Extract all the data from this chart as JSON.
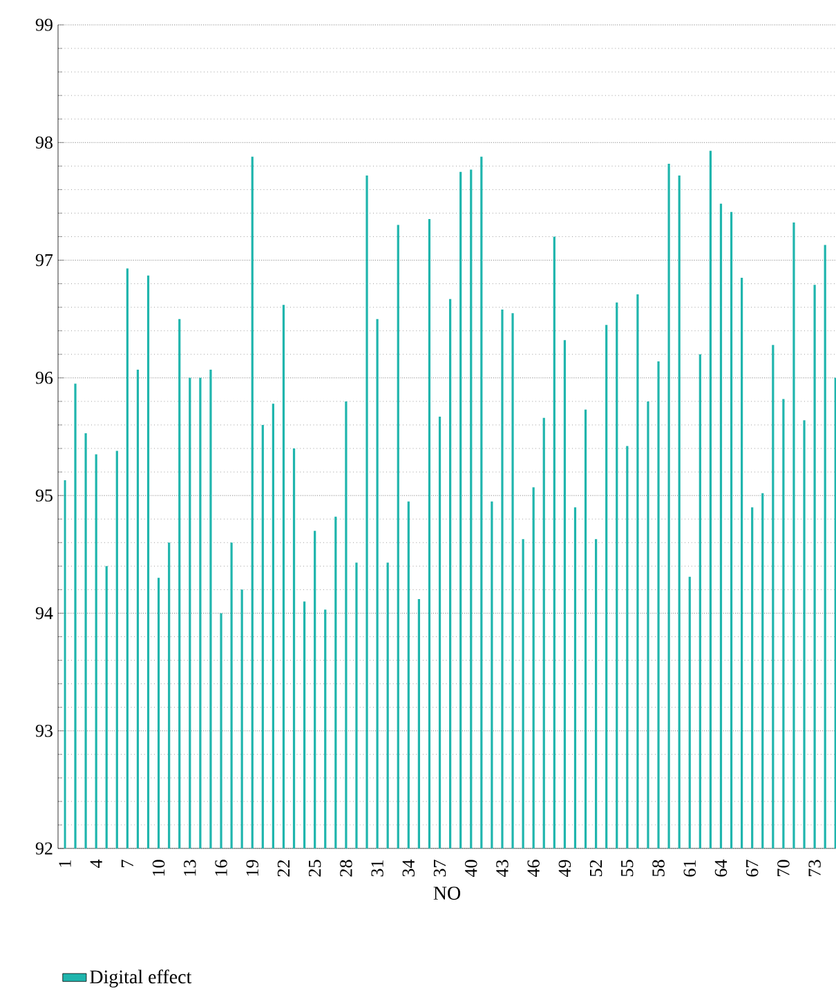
{
  "chart_data": {
    "type": "bar",
    "xlabel": "NO",
    "categories": [
      "1",
      null,
      null,
      "4",
      null,
      null,
      "7",
      null,
      null,
      "10",
      null,
      null,
      "13",
      null,
      null,
      "16",
      null,
      null,
      "19",
      null,
      null,
      "22",
      null,
      null,
      "25",
      null,
      null,
      "28",
      null,
      null,
      "31",
      null,
      null,
      "34",
      null,
      null,
      "37",
      null,
      null,
      "40",
      null,
      null,
      "43",
      null,
      null,
      "46",
      null,
      null,
      "49",
      null,
      null,
      "52",
      null,
      null,
      "55",
      null,
      null,
      "58",
      null,
      null,
      "61",
      null,
      null,
      "64",
      null,
      null,
      "67",
      null,
      null,
      "70",
      null,
      null,
      "73",
      null,
      null
    ],
    "series": [
      {
        "name": "Digital effect",
        "color": "#1fb5ad",
        "values": [
          95.13,
          95.95,
          95.53,
          95.35,
          94.4,
          95.38,
          96.93,
          96.07,
          96.87,
          94.3,
          94.6,
          96.5,
          96.0,
          96.0,
          96.07,
          94.0,
          94.6,
          94.2,
          97.88,
          95.6,
          95.78,
          96.62,
          95.4,
          94.1,
          94.7,
          94.03,
          94.82,
          95.8,
          94.43,
          97.72,
          96.5,
          94.43,
          97.3,
          94.95,
          94.12,
          97.35,
          95.67,
          96.67,
          97.75,
          97.77,
          97.88,
          94.95,
          96.58,
          96.55,
          94.63,
          95.07,
          95.66,
          97.2,
          96.32,
          94.9,
          95.73,
          94.63,
          96.45,
          96.64,
          95.42,
          96.71,
          95.8,
          96.14,
          97.82,
          97.72,
          94.31,
          96.2,
          97.93,
          97.48,
          97.41,
          96.85,
          94.9,
          95.02,
          96.28,
          95.82,
          97.32,
          95.64,
          96.79,
          97.13,
          96.0
        ]
      }
    ],
    "ylim": [
      92,
      99
    ],
    "yticks": [
      92,
      93,
      94,
      95,
      96,
      97,
      98,
      99
    ],
    "grid": "y",
    "legend": "bottom"
  }
}
